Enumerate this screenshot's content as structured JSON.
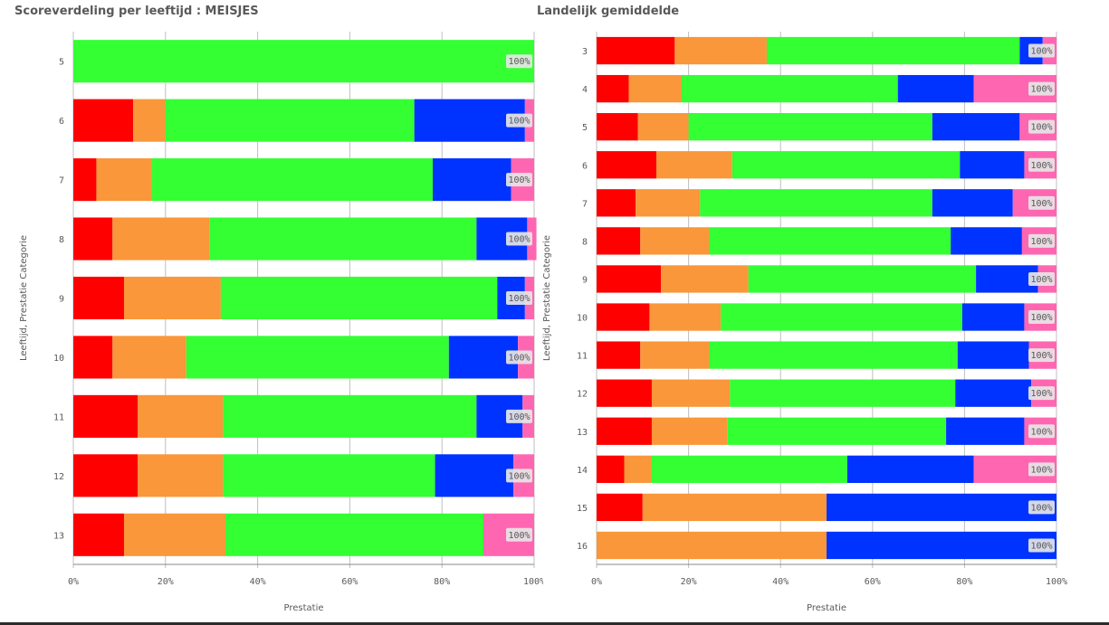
{
  "colors": {
    "seg1": "#ff0000",
    "seg2": "#f9973a",
    "seg3": "#33ff33",
    "seg4": "#0033ff",
    "seg5": "#ff66b2",
    "grid": "#bfbfbf",
    "axis": "#888888",
    "text": "#595959"
  },
  "chart_data": [
    {
      "type": "bar",
      "orientation": "horizontal",
      "stacked": true,
      "title": "Scoreverdeling per leeftijd : MEISJES",
      "xlabel": "Prestatie",
      "ylabel": "Leeftijd, Prestatie Categorie",
      "xlim": [
        0,
        100
      ],
      "xticks": [
        "0%",
        "20%",
        "40%",
        "60%",
        "80%",
        "100%"
      ],
      "grid": true,
      "categories": [
        "5",
        "6",
        "7",
        "8",
        "9",
        "10",
        "11",
        "12",
        "13"
      ],
      "segments": [
        [
          0,
          0,
          100,
          0,
          0
        ],
        [
          13,
          7,
          54,
          24,
          2
        ],
        [
          5,
          12,
          61,
          17,
          5
        ],
        [
          8.5,
          21,
          58,
          11,
          2
        ],
        [
          11,
          21,
          60,
          6,
          2
        ],
        [
          8.5,
          16,
          57,
          15,
          3.5
        ],
        [
          14,
          18.5,
          55,
          10,
          2.5
        ],
        [
          14,
          18.5,
          46,
          17,
          4.5
        ],
        [
          11,
          22,
          56,
          0,
          11
        ]
      ],
      "bar_labels": [
        "100%",
        "100%",
        "100%",
        "100%",
        "100%",
        "100%",
        "100%",
        "100%",
        "100%"
      ]
    },
    {
      "type": "bar",
      "orientation": "horizontal",
      "stacked": true,
      "title": "Landelijk gemiddelde",
      "xlabel": "Prestatie",
      "ylabel": "Leeftijd, Prestatie Categorie",
      "xlim": [
        0,
        100
      ],
      "xticks": [
        "0%",
        "20%",
        "40%",
        "60%",
        "80%",
        "100%"
      ],
      "grid": true,
      "categories": [
        "3",
        "4",
        "5",
        "6",
        "7",
        "8",
        "9",
        "10",
        "11",
        "12",
        "13",
        "14",
        "15",
        "16"
      ],
      "segments": [
        [
          17,
          20,
          55,
          5,
          3
        ],
        [
          7,
          11.5,
          47,
          16.5,
          18
        ],
        [
          9,
          11,
          53,
          19,
          8
        ],
        [
          13,
          16.5,
          49.5,
          14,
          7
        ],
        [
          8.5,
          14,
          50.5,
          17.5,
          9.5
        ],
        [
          9.5,
          15,
          52.5,
          15.5,
          7.5
        ],
        [
          14,
          19,
          49.5,
          13.5,
          4
        ],
        [
          11.5,
          15.5,
          52.5,
          13.5,
          7
        ],
        [
          9.5,
          15,
          54,
          15.5,
          6
        ],
        [
          12,
          17,
          49,
          16.5,
          5.5
        ],
        [
          12,
          16.5,
          47.5,
          17,
          7
        ],
        [
          6,
          6,
          42.5,
          27.5,
          18
        ],
        [
          10,
          40,
          0,
          50,
          0
        ],
        [
          0,
          50,
          0,
          50,
          0
        ]
      ],
      "bar_labels": [
        "100%",
        "100%",
        "100%",
        "100%",
        "100%",
        "100%",
        "100%",
        "100%",
        "100%",
        "100%",
        "100%",
        "100%",
        "100%",
        "100%"
      ]
    }
  ]
}
